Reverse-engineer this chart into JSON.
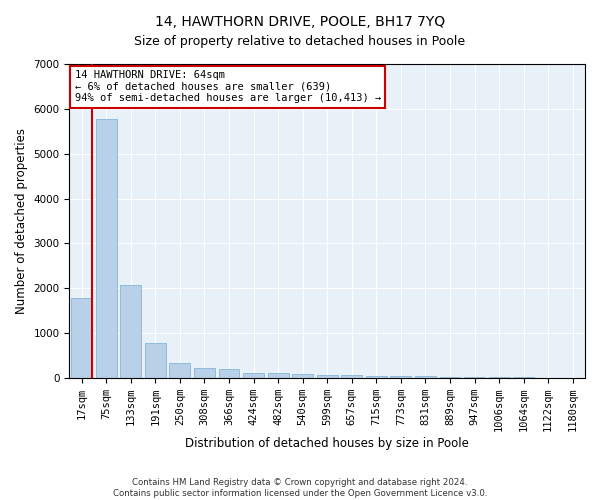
{
  "title": "14, HAWTHORN DRIVE, POOLE, BH17 7YQ",
  "subtitle": "Size of property relative to detached houses in Poole",
  "xlabel": "Distribution of detached houses by size in Poole",
  "ylabel": "Number of detached properties",
  "categories": [
    "17sqm",
    "75sqm",
    "133sqm",
    "191sqm",
    "250sqm",
    "308sqm",
    "366sqm",
    "424sqm",
    "482sqm",
    "540sqm",
    "599sqm",
    "657sqm",
    "715sqm",
    "773sqm",
    "831sqm",
    "889sqm",
    "947sqm",
    "1006sqm",
    "1064sqm",
    "1122sqm",
    "1180sqm"
  ],
  "values": [
    1780,
    5780,
    2080,
    790,
    340,
    220,
    190,
    120,
    100,
    90,
    75,
    60,
    55,
    45,
    35,
    25,
    20,
    15,
    12,
    10,
    8
  ],
  "bar_color": "#b8d0e8",
  "bar_edge_color": "#7aadd4",
  "annotation_text": "14 HAWTHORN DRIVE: 64sqm\n← 6% of detached houses are smaller (639)\n94% of semi-detached houses are larger (10,413) →",
  "annotation_box_color": "#ffffff",
  "annotation_box_edge_color": "#cc0000",
  "vline_x": 0.42,
  "ylim": [
    0,
    7000
  ],
  "yticks": [
    0,
    1000,
    2000,
    3000,
    4000,
    5000,
    6000,
    7000
  ],
  "bg_color": "#e8f0f8",
  "footer_line1": "Contains HM Land Registry data © Crown copyright and database right 2024.",
  "footer_line2": "Contains public sector information licensed under the Open Government Licence v3.0.",
  "title_fontsize": 10,
  "subtitle_fontsize": 9,
  "xlabel_fontsize": 8.5,
  "ylabel_fontsize": 8.5,
  "tick_fontsize": 7.5,
  "annotation_fontsize": 7.5
}
